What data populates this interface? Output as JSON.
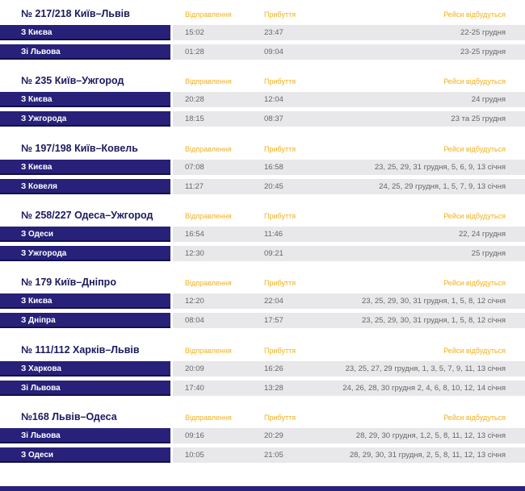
{
  "headers": {
    "departure": "Відправлення",
    "arrival": "Прибуття",
    "dates": "Рейси відбудуться"
  },
  "trains": [
    {
      "title": "№ 217/218 Київ–Львів",
      "rows": [
        {
          "from": "З Києва",
          "dep": "15:02",
          "arr": "23:47",
          "dates": "22-25 грудня"
        },
        {
          "from": "Зі Львова",
          "dep": "01:28",
          "arr": "09:04",
          "dates": "23-25 грудня"
        }
      ]
    },
    {
      "title": "№ 235 Київ–Ужгород",
      "rows": [
        {
          "from": "З Києва",
          "dep": "20:28",
          "arr": "12:04",
          "dates": "24 грудня"
        },
        {
          "from": "З Ужгорода",
          "dep": "18:15",
          "arr": "08:37",
          "dates": "23 та 25 грудня"
        }
      ]
    },
    {
      "title": "№ 197/198 Київ–Ковель",
      "rows": [
        {
          "from": "З Києва",
          "dep": "07:08",
          "arr": "16:58",
          "dates": "23, 25, 29, 31 грудня, 5, 6, 9, 13 січня"
        },
        {
          "from": "З Ковеля",
          "dep": "11:27",
          "arr": "20:45",
          "dates": "24, 25, 29 грудня, 1, 5, 7, 9, 13 січня"
        }
      ]
    },
    {
      "title": "№ 258/227 Одеса–Ужгород",
      "rows": [
        {
          "from": "З Одеси",
          "dep": "16:54",
          "arr": "11:46",
          "dates": "22, 24 грудня"
        },
        {
          "from": "З Ужгорода",
          "dep": "12:30",
          "arr": "09:21",
          "dates": "25 грудня"
        }
      ]
    },
    {
      "title": "№ 179 Київ–Дніпро",
      "rows": [
        {
          "from": "З Києва",
          "dep": "12:20",
          "arr": "22:04",
          "dates": "23, 25, 29, 30, 31 грудня, 1, 5, 8, 12 січня"
        },
        {
          "from": "З Дніпра",
          "dep": "08:04",
          "arr": "17:57",
          "dates": "23, 25, 29, 30, 31 грудня, 1, 5, 8, 12 січня"
        }
      ]
    },
    {
      "title": "№ 111/112 Харків–Львів",
      "rows": [
        {
          "from": "З Харкова",
          "dep": "20:09",
          "arr": "16:26",
          "dates": "23, 25, 27, 29 грудня, 1, 3, 5, 7, 9, 11, 13 січня"
        },
        {
          "from": "Зі Львова",
          "dep": "17:40",
          "arr": "13:28",
          "dates": "24, 26, 28, 30 грудня 2, 4, 6, 8, 10, 12, 14 січня"
        }
      ]
    },
    {
      "title": "№168 Львів–Одеса",
      "rows": [
        {
          "from": "Зі Львова",
          "dep": "09:16",
          "arr": "20:29",
          "dates": "28, 29, 30 грудня, 1,2, 5, 8, 11, 12, 13 січня"
        },
        {
          "from": "З Одеси",
          "dep": "10:05",
          "arr": "21:05",
          "dates": "28, 29, 30, 31 грудня, 2, 5, 8, 11, 12, 13 січня"
        }
      ]
    }
  ]
}
